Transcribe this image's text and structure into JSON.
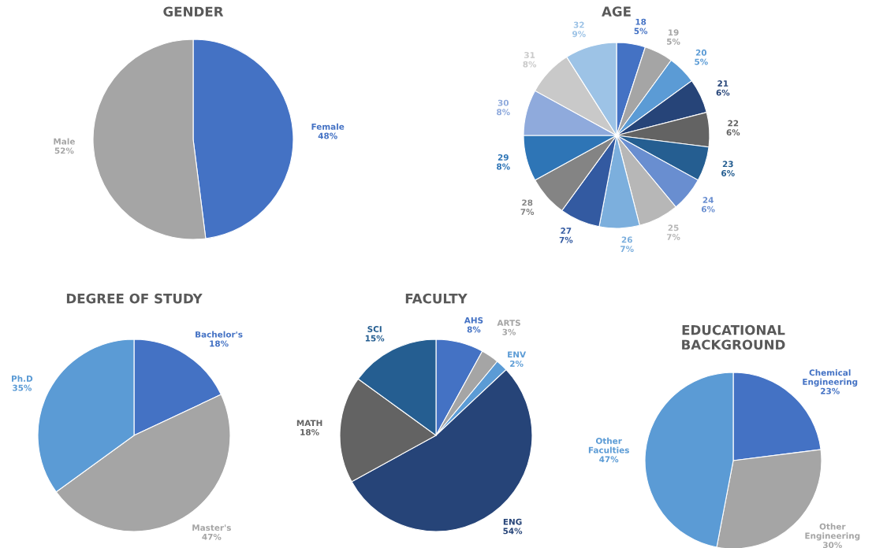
{
  "chart_data": [
    {
      "type": "pie",
      "title": "GENDER",
      "categories": [
        "Female",
        "Male"
      ],
      "values": [
        48,
        52
      ],
      "value_labels": [
        "48%",
        "52%"
      ],
      "colors": [
        "#4472c4",
        "#a5a5a5"
      ]
    },
    {
      "type": "pie",
      "title": "AGE",
      "categories": [
        "18",
        "19",
        "20",
        "21",
        "22",
        "23",
        "24",
        "25",
        "26",
        "27",
        "28",
        "29",
        "30",
        "31",
        "32"
      ],
      "values": [
        5,
        5,
        5,
        6,
        6,
        6,
        6,
        7,
        7,
        7,
        7,
        8,
        8,
        8,
        9
      ],
      "value_labels": [
        "5%",
        "5%",
        "5%",
        "6%",
        "6%",
        "6%",
        "6%",
        "7%",
        "7%",
        "7%",
        "7%",
        "8%",
        "8%",
        "8%",
        "9%"
      ],
      "colors": [
        "#4472c4",
        "#a5a5a5",
        "#5b9bd5",
        "#264478",
        "#636363",
        "#255e91",
        "#698ed0",
        "#b7b7b7",
        "#7cafdd",
        "#335aa1",
        "#848484",
        "#2e75b6",
        "#8faadc",
        "#c9c9c9",
        "#9dc3e6"
      ]
    },
    {
      "type": "pie",
      "title": "DEGREE OF STUDY",
      "categories": [
        "Bachelor's",
        "Master's",
        "Ph.D"
      ],
      "values": [
        18,
        47,
        35
      ],
      "value_labels": [
        "18%",
        "47%",
        "35%"
      ],
      "colors": [
        "#4472c4",
        "#a5a5a5",
        "#5b9bd5"
      ]
    },
    {
      "type": "pie",
      "title": "FACULTY",
      "categories": [
        "AHS",
        "ARTS",
        "ENV",
        "ENG",
        "MATH",
        "SCI"
      ],
      "values": [
        8,
        3,
        2,
        54,
        18,
        15
      ],
      "value_labels": [
        "8%",
        "3%",
        "2%",
        "54%",
        "18%",
        "15%"
      ],
      "colors": [
        "#4472c4",
        "#a5a5a5",
        "#5b9bd5",
        "#264478",
        "#636363",
        "#255e91"
      ]
    },
    {
      "type": "pie",
      "title": "EDUCATIONAL\nBACKGROUND",
      "categories": [
        "Chemical\nEngineering",
        "Other\nEngineering",
        "Other\nFaculties"
      ],
      "values": [
        23,
        30,
        47
      ],
      "value_labels": [
        "23%",
        "30%",
        "47%"
      ],
      "colors": [
        "#4472c4",
        "#a5a5a5",
        "#5b9bd5"
      ]
    }
  ]
}
